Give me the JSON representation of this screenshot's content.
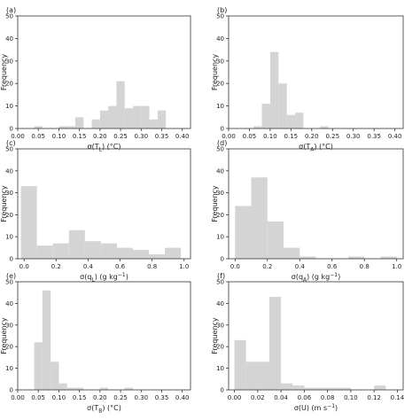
{
  "chart_data": [
    {
      "panel": "(a)",
      "type": "histogram",
      "xlabel": "σ(T_L) (°C)",
      "ylabel": "Frequency",
      "xlim": [
        0.0,
        0.42
      ],
      "ylim": [
        0,
        50
      ],
      "xticks": [
        "0.00",
        "0.05",
        "0.10",
        "0.15",
        "0.20",
        "0.25",
        "0.30",
        "0.35",
        "0.40"
      ],
      "yticks": [
        "0",
        "10",
        "20",
        "30",
        "40",
        "50"
      ],
      "bin_width": 0.02,
      "bin_starts": [
        0.0,
        0.02,
        0.04,
        0.06,
        0.08,
        0.1,
        0.12,
        0.14,
        0.16,
        0.18,
        0.2,
        0.22,
        0.24,
        0.26,
        0.28,
        0.3,
        0.32,
        0.34,
        0.36,
        0.38
      ],
      "counts": [
        0,
        0,
        1,
        0,
        0,
        1,
        1,
        5,
        0,
        4,
        8,
        10,
        21,
        9,
        10,
        10,
        4,
        8,
        0,
        0
      ]
    },
    {
      "panel": "(b)",
      "type": "histogram",
      "xlabel": "σ(T_A) (°C)",
      "ylabel": "Frequency",
      "xlim": [
        0.0,
        0.42
      ],
      "ylim": [
        0,
        50
      ],
      "xticks": [
        "0.00",
        "0.05",
        "0.10",
        "0.15",
        "0.20",
        "0.25",
        "0.30",
        "0.35",
        "0.40"
      ],
      "yticks": [
        "0",
        "10",
        "20",
        "30",
        "40",
        "50"
      ],
      "bin_width": 0.02,
      "bin_starts": [
        0.06,
        0.08,
        0.1,
        0.12,
        0.14,
        0.16,
        0.18,
        0.2,
        0.22
      ],
      "counts": [
        1,
        11,
        34,
        20,
        6,
        7,
        0,
        0,
        1
      ]
    },
    {
      "panel": "(c)",
      "type": "histogram",
      "xlabel": "σ(q_L) (g kg⁻¹)",
      "ylabel": "Frequency",
      "xlim": [
        -0.04,
        1.04
      ],
      "ylim": [
        0,
        50
      ],
      "xticks": [
        "0.0",
        "0.2",
        "0.4",
        "0.6",
        "0.8",
        "1.0"
      ],
      "yticks": [
        "0",
        "10",
        "20",
        "30",
        "40",
        "50"
      ],
      "bin_width": 0.1,
      "bin_starts": [
        -0.02,
        0.08,
        0.18,
        0.28,
        0.38,
        0.48,
        0.58,
        0.68,
        0.78,
        0.88
      ],
      "counts": [
        33,
        6,
        7,
        13,
        8,
        7,
        5,
        4,
        2,
        5
      ]
    },
    {
      "panel": "(d)",
      "type": "histogram",
      "xlabel": "σ(q_A) (g kg⁻¹)",
      "ylabel": "Frequency",
      "xlim": [
        -0.04,
        1.04
      ],
      "ylim": [
        0,
        50
      ],
      "xticks": [
        "0.0",
        "0.2",
        "0.4",
        "0.6",
        "0.8",
        "1.0"
      ],
      "yticks": [
        "0",
        "10",
        "20",
        "30",
        "40",
        "50"
      ],
      "bin_width": 0.1,
      "bin_starts": [
        0.0,
        0.1,
        0.2,
        0.3,
        0.4,
        0.5,
        0.6,
        0.7,
        0.8,
        0.9
      ],
      "counts": [
        24,
        37,
        17,
        5,
        1,
        0,
        0,
        1,
        0,
        1
      ]
    },
    {
      "panel": "(e)",
      "type": "histogram",
      "xlabel": "σ(T_B) (°C)",
      "ylabel": "Frequency",
      "xlim": [
        0.0,
        0.42
      ],
      "ylim": [
        0,
        50
      ],
      "xticks": [
        "0.00",
        "0.05",
        "0.10",
        "0.15",
        "0.20",
        "0.25",
        "0.30",
        "0.35",
        "0.40"
      ],
      "yticks": [
        "0",
        "10",
        "20",
        "30",
        "40",
        "50"
      ],
      "bin_width": 0.02,
      "bin_starts": [
        0.02,
        0.04,
        0.06,
        0.08,
        0.1,
        0.12,
        0.14,
        0.16,
        0.18,
        0.2,
        0.22,
        0.24,
        0.26,
        0.28
      ],
      "counts": [
        0,
        22,
        46,
        13,
        3,
        1,
        1,
        0,
        0,
        1,
        0,
        0,
        1,
        0
      ]
    },
    {
      "panel": "(f)",
      "type": "histogram",
      "xlabel": "σ(U) (m s⁻¹)",
      "ylabel": "Frequency",
      "xlim": [
        -0.005,
        0.145
      ],
      "ylim": [
        0,
        50
      ],
      "xticks": [
        "0.00",
        "0.02",
        "0.04",
        "0.06",
        "0.08",
        "0.10",
        "0.12",
        "0.14"
      ],
      "yticks": [
        "0",
        "10",
        "20",
        "30",
        "40",
        "50"
      ],
      "bin_width": 0.01,
      "bin_starts": [
        0.0,
        0.01,
        0.02,
        0.03,
        0.04,
        0.05,
        0.06,
        0.07,
        0.08,
        0.09,
        0.1,
        0.11,
        0.12,
        0.13
      ],
      "counts": [
        23,
        13,
        13,
        43,
        3,
        2,
        1,
        1,
        1,
        1,
        0,
        0,
        2,
        0
      ]
    }
  ]
}
